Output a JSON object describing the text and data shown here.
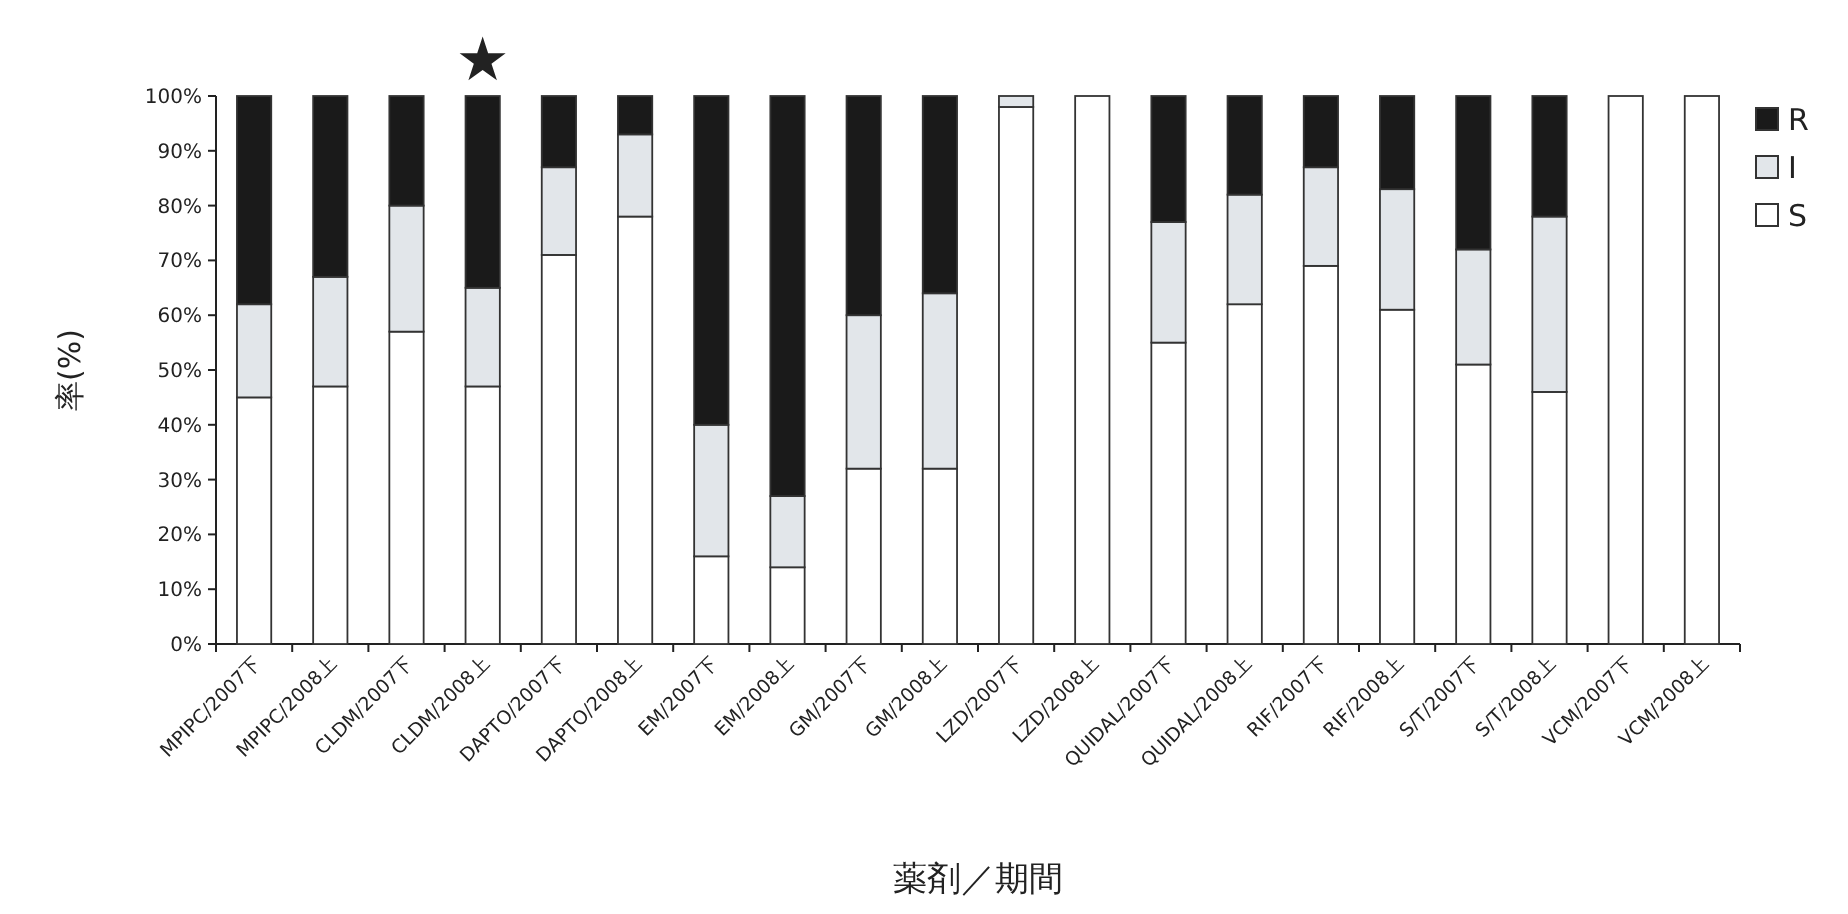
{
  "chart_data": {
    "type": "bar",
    "stacked": true,
    "xlabel": "薬剤／期間",
    "ylabel": "率(%)",
    "categories": [
      "MPIPC/2007下",
      "MPIPC/2008上",
      "CLDM/2007下",
      "CLDM/2008上",
      "DAPTO/2007下",
      "DAPTO/2008上",
      "EM/2007下",
      "EM/2008上",
      "GM/2007下",
      "GM/2008上",
      "LZD/2007下",
      "LZD/2008上",
      "QUIDAL/2007下",
      "QUIDAL/2008上",
      "RIF/2007下",
      "RIF/2008上",
      "S/T/2007下",
      "S/T/2008上",
      "VCM/2007下",
      "VCM/2008上"
    ],
    "series": [
      {
        "name": "S",
        "color": "#ffffff",
        "values": [
          45,
          47,
          57,
          47,
          71,
          78,
          16,
          14,
          32,
          32,
          98,
          100,
          55,
          62,
          69,
          61,
          51,
          46,
          100,
          100
        ]
      },
      {
        "name": "I",
        "color": "#e2e6ea",
        "values": [
          17,
          20,
          23,
          18,
          16,
          15,
          24,
          13,
          28,
          32,
          2,
          0,
          22,
          20,
          18,
          22,
          21,
          32,
          0,
          0
        ]
      },
      {
        "name": "R",
        "color": "#1a1a1a",
        "values": [
          38,
          33,
          20,
          35,
          13,
          7,
          60,
          73,
          40,
          36,
          0,
          0,
          23,
          18,
          13,
          17,
          28,
          22,
          0,
          0
        ]
      }
    ],
    "ylim": [
      0,
      100
    ],
    "yticks": [
      {
        "value": 0,
        "label": "0%"
      },
      {
        "value": 10,
        "label": "10%"
      },
      {
        "value": 20,
        "label": "20%"
      },
      {
        "value": 30,
        "label": "30%"
      },
      {
        "value": 40,
        "label": "40%"
      },
      {
        "value": 50,
        "label": "50%"
      },
      {
        "value": 60,
        "label": "60%"
      },
      {
        "value": 70,
        "label": "70%"
      },
      {
        "value": 80,
        "label": "80%"
      },
      {
        "value": 90,
        "label": "90%"
      },
      {
        "value": 100,
        "label": "100%"
      }
    ],
    "legend": "right",
    "grid": false,
    "annotations": [
      "★"
    ]
  }
}
